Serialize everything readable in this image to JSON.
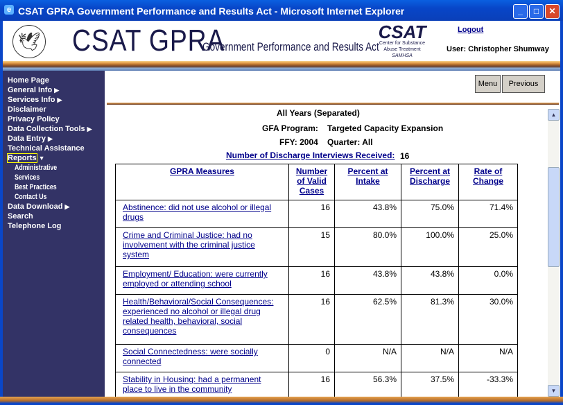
{
  "window": {
    "title": "CSAT GPRA Government Performance and Results Act - Microsoft Internet Explorer"
  },
  "header": {
    "brand": "CSAT GPRA",
    "subtitle": "Government Performance and Results Act",
    "csat_logo": "CSAT",
    "csat_sub1": "Center for Substance",
    "csat_sub2": "Abuse Treatment",
    "csat_sub3": "SAMHSA",
    "logout": "Logout",
    "user": "User: Christopher Shumway"
  },
  "sidebar": {
    "items": [
      {
        "label": "Home Page"
      },
      {
        "label": "General Info",
        "arrow": "▶"
      },
      {
        "label": "Services Info",
        "arrow": "▶"
      },
      {
        "label": "Disclaimer"
      },
      {
        "label": "Privacy Policy"
      },
      {
        "label": "Data Collection Tools",
        "arrow": "▶"
      },
      {
        "label": "Data Entry",
        "arrow": "▶"
      },
      {
        "label": "Technical Assistance"
      },
      {
        "label": "Reports",
        "arrow": "▼"
      },
      {
        "label": "Administrative"
      },
      {
        "label": "Services"
      },
      {
        "label": "Best Practices"
      },
      {
        "label": "Contact Us"
      },
      {
        "label": "Data Download",
        "arrow": "▶"
      },
      {
        "label": "Search"
      },
      {
        "label": "Telephone Log"
      }
    ]
  },
  "toolbar": {
    "menu": "Menu",
    "previous": "Previous"
  },
  "report": {
    "years": "All Years (Separated)",
    "gfa_label": "GFA Program:",
    "gfa_value": "Targeted Capacity Expansion",
    "ffy": "FFY: 2004",
    "quarter": "Quarter: All",
    "discharge_label": "Number of Discharge Interviews Received:",
    "discharge_value": "16"
  },
  "table": {
    "headers": [
      "GPRA Measures",
      "Number of Valid Cases",
      "Percent at Intake",
      "Percent at Discharge",
      "Rate of Change"
    ],
    "rows": [
      [
        "Abstinence: did not use alcohol or illegal drugs",
        "16",
        "43.8%",
        "75.0%",
        "71.4%"
      ],
      [
        "Crime and Criminal Justice: had no involvement with the criminal justice system",
        "15",
        "80.0%",
        "100.0%",
        "25.0%"
      ],
      [
        "Employment/ Education: were currently employed or attending school",
        "16",
        "43.8%",
        "43.8%",
        "0.0%"
      ],
      [
        "Health/Behavioral/Social Consequences: experienced no alcohol or illegal drug related health, behavioral, social consequences",
        "16",
        "62.5%",
        "81.3%",
        "30.0%"
      ],
      [
        "Social Connectedness: were socially connected",
        "0",
        "N/A",
        "N/A",
        "N/A"
      ],
      [
        "Stability in Housing: had a permanent place to live in the community",
        "16",
        "56.3%",
        "37.5%",
        "-33.3%"
      ]
    ]
  }
}
